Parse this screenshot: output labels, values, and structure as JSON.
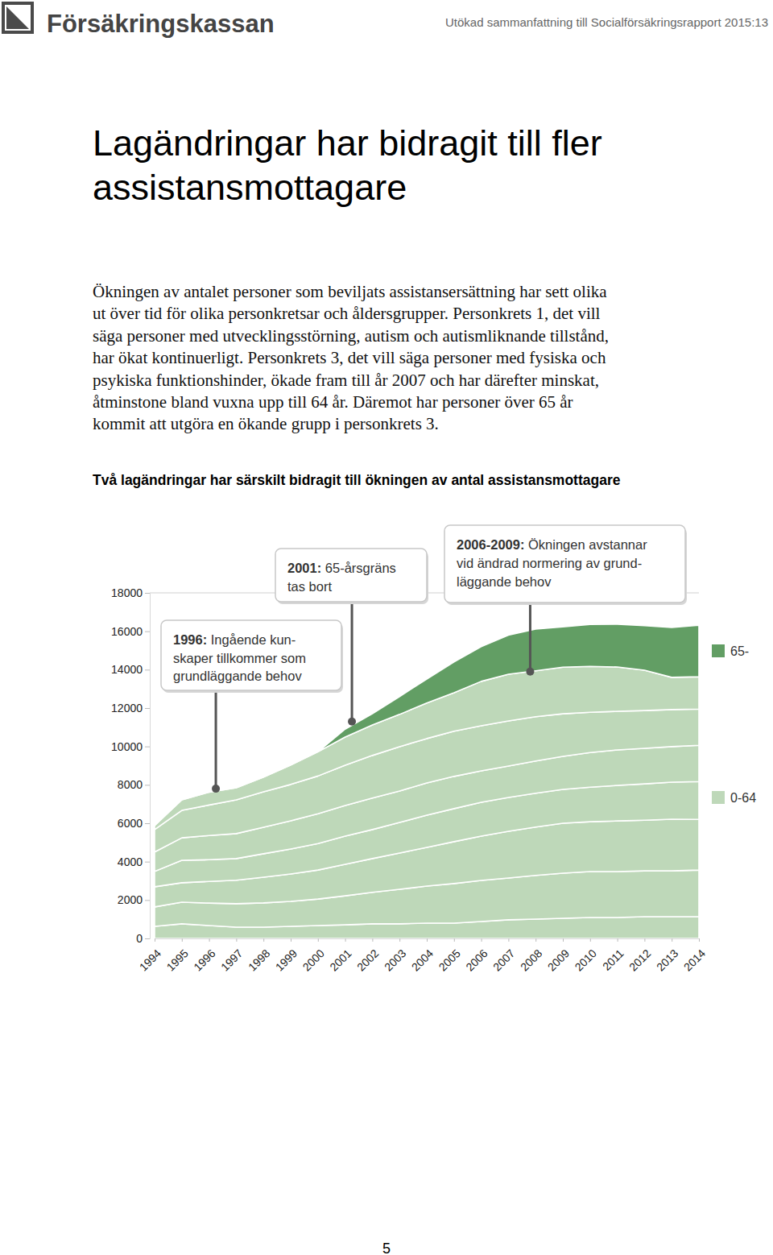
{
  "header": {
    "logo": "Försäkringskassan",
    "report": "Utökad sammanfattning till Socialförsäkringsrapport 2015:13"
  },
  "title": [
    "Lagändringar har bidragit till fler",
    "assistansmottagare"
  ],
  "paragraph": [
    "Ökningen av antalet personer som beviljats assistansersättning har sett olika",
    "ut över tid för olika personkretsar och åldersgrupper. Personkrets 1, det vill",
    "säga personer med utvecklingsstörning, autism och autismliknande tillstånd,",
    "har ökat kontinuerligt. Personkrets 3, det vill säga personer med fysiska och",
    "psykiska funktionshinder, ökade fram till år 2007 och har därefter minskat,",
    "åtminstone bland vuxna upp till 64 år. Däremot har personer över 65 år",
    "kommit att utgöra en ökande grupp i personkrets 3."
  ],
  "chart_data": {
    "type": "area",
    "stacked": true,
    "title": "Två lagändringar har särskilt bidragit till ökningen av antal assistansmottagare",
    "x": [
      1994,
      1995,
      1996,
      1997,
      1998,
      1999,
      2000,
      2001,
      2002,
      2003,
      2004,
      2005,
      2006,
      2007,
      2008,
      2009,
      2010,
      2011,
      2012,
      2013,
      2014
    ],
    "xlim": [
      1994,
      2014
    ],
    "xticks": [
      1994,
      1995,
      1996,
      1997,
      1998,
      1999,
      2000,
      2001,
      2002,
      2003,
      2004,
      2005,
      2006,
      2007,
      2008,
      2009,
      2010,
      2011,
      2012,
      2013,
      2014
    ],
    "ylim": [
      0,
      18000
    ],
    "yticks": [
      0,
      2000,
      4000,
      6000,
      8000,
      10000,
      12000,
      14000,
      16000,
      18000
    ],
    "grid": false,
    "legend": "right",
    "series": [
      {
        "name": "0-64",
        "color": "#bed8b9",
        "values": [
          630,
          760,
          670,
          590,
          590,
          630,
          670,
          710,
          760,
          760,
          800,
          800,
          880,
          970,
          1010,
          1050,
          1090,
          1090,
          1130,
          1130,
          1130
        ]
      },
      {
        "name": "0-64",
        "color": "#bed8b9",
        "values": [
          1010,
          1130,
          1170,
          1220,
          1260,
          1300,
          1380,
          1510,
          1640,
          1800,
          1930,
          2060,
          2140,
          2180,
          2270,
          2350,
          2390,
          2390,
          2390,
          2390,
          2430
        ]
      },
      {
        "name": "0-64",
        "color": "#bed8b9",
        "values": [
          1050,
          1010,
          1130,
          1220,
          1340,
          1430,
          1510,
          1640,
          1760,
          1890,
          2010,
          2180,
          2310,
          2430,
          2520,
          2600,
          2600,
          2640,
          2640,
          2690,
          2640
        ]
      },
      {
        "name": "0-64",
        "color": "#bed8b9",
        "values": [
          800,
          1170,
          1130,
          1130,
          1220,
          1300,
          1380,
          1470,
          1510,
          1590,
          1680,
          1720,
          1760,
          1760,
          1760,
          1760,
          1800,
          1850,
          1890,
          1930,
          1970
        ]
      },
      {
        "name": "0-64",
        "color": "#bed8b9",
        "values": [
          1010,
          1170,
          1260,
          1300,
          1380,
          1470,
          1550,
          1590,
          1640,
          1640,
          1680,
          1680,
          1640,
          1640,
          1680,
          1720,
          1800,
          1850,
          1850,
          1850,
          1890
        ]
      },
      {
        "name": "0-64",
        "color": "#bed8b9",
        "values": [
          1170,
          1430,
          1590,
          1760,
          1850,
          1890,
          1970,
          2100,
          2220,
          2310,
          2310,
          2350,
          2350,
          2350,
          2310,
          2220,
          2100,
          2010,
          1970,
          1930,
          1890
        ]
      },
      {
        "name": "0-64",
        "color": "#bed8b9",
        "values": [
          210,
          550,
          670,
          630,
          760,
          1010,
          1260,
          1470,
          1590,
          1680,
          1850,
          2010,
          2310,
          2430,
          2390,
          2430,
          2390,
          2310,
          2100,
          1680,
          1680
        ]
      },
      {
        "name": "65-",
        "color": "#629e64",
        "values": [
          0,
          0,
          0,
          0,
          0,
          0,
          0,
          410,
          580,
          930,
          1250,
          1600,
          1810,
          2040,
          2170,
          2100,
          2190,
          2230,
          2320,
          2600,
          2680
        ]
      }
    ],
    "annotations": [
      {
        "x": 1996.25,
        "y": 7800,
        "text": [
          "1996: Ingående kun-",
          "skaper tillkommer som",
          "grundläggande behov"
        ]
      },
      {
        "x": 2001.25,
        "y": 11300,
        "text": [
          "2001: 65-årsgräns",
          "tas bort"
        ]
      },
      {
        "x": 2007.8,
        "y": 13900,
        "text": [
          "2006-2009: Ökningen avstannar",
          "vid ändrad normering av grund-",
          "läggande behov"
        ]
      }
    ]
  },
  "page_number": "5"
}
